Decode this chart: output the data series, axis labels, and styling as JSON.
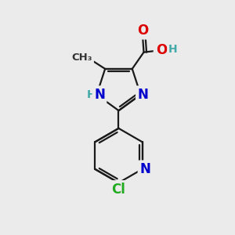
{
  "background_color": "#ebebeb",
  "bond_color": "#1a1a1a",
  "bond_width": 1.6,
  "atom_colors": {
    "N": "#0000cc",
    "O": "#dd0000",
    "Cl": "#22aa22",
    "NH": "#0000cc",
    "H": "#44aaaa"
  },
  "font_size": 11,
  "figsize": [
    3.0,
    3.0
  ],
  "dpi": 100,
  "xlim": [
    0,
    10
  ],
  "ylim": [
    0,
    10
  ]
}
